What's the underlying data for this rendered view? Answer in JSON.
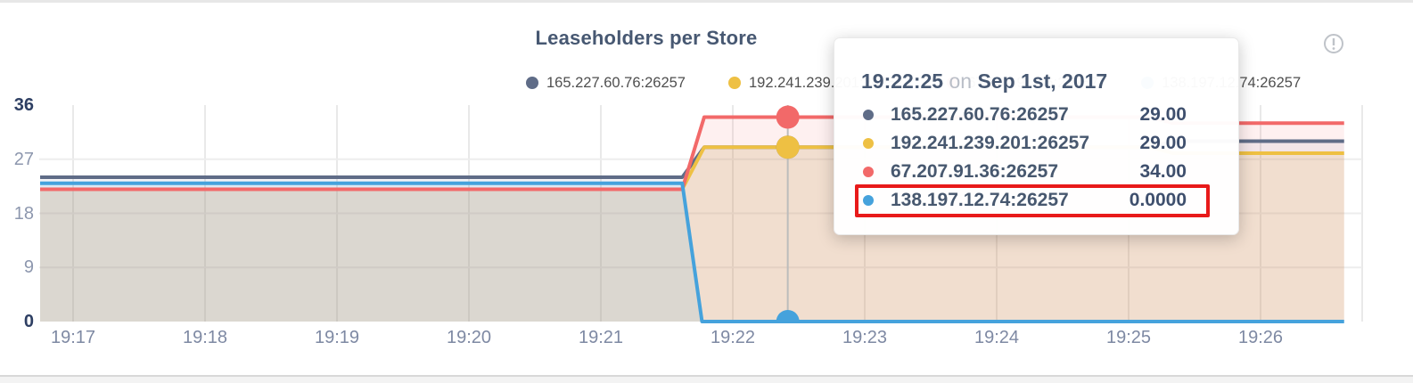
{
  "page": {
    "title": "Leaseholders per Store"
  },
  "header": {
    "info_icon": "info-circle-icon"
  },
  "legend": {
    "items": [
      {
        "label": "165.227.60.76:26257",
        "color": "#5f6c87"
      },
      {
        "label": "192.241.239.201:26257",
        "color": "#eec043"
      },
      {
        "label": "67.207.91.36:26257",
        "color": "#f26969"
      },
      {
        "label": "138.197.12.74:26257",
        "color": "#45a2dc"
      }
    ]
  },
  "tooltip": {
    "time": "19:22:25",
    "conjunction": "on",
    "date": "Sep 1st, 2017",
    "rows": [
      {
        "label": "165.227.60.76:26257",
        "value": "29.00",
        "color": "#5f6c87",
        "highlighted": false
      },
      {
        "label": "192.241.239.201:26257",
        "value": "29.00",
        "color": "#eec043",
        "highlighted": false
      },
      {
        "label": "67.207.91.36:26257",
        "value": "34.00",
        "color": "#f26969",
        "highlighted": false
      },
      {
        "label": "138.197.12.74:26257",
        "value": "0.0000",
        "color": "#45a2dc",
        "highlighted": true
      }
    ],
    "highlight_color": "#e81a1a"
  },
  "chart_data": {
    "type": "area",
    "title": "Leaseholders per Store",
    "xlabel": "",
    "ylabel": "",
    "ylim": [
      0,
      36
    ],
    "y_ticks": [
      0,
      9,
      18,
      27,
      36
    ],
    "x_tick_labels": [
      "19:17",
      "19:18",
      "19:19",
      "19:20",
      "19:21",
      "19:22",
      "19:23",
      "19:24",
      "19:25",
      "19:26"
    ],
    "x_tick_seconds": [
      0,
      60,
      120,
      180,
      240,
      300,
      360,
      420,
      480,
      540
    ],
    "x_domain_seconds": [
      -15,
      578
    ],
    "grid": true,
    "legend_position": "top",
    "series": [
      {
        "name": "165.227.60.76:26257",
        "color": "#5f6c87",
        "points": [
          [
            -15,
            24
          ],
          [
            277,
            24
          ],
          [
            287,
            29
          ],
          [
            490,
            29
          ],
          [
            500,
            30
          ],
          [
            578,
            30
          ]
        ]
      },
      {
        "name": "192.241.239.201:26257",
        "color": "#eec043",
        "points": [
          [
            -15,
            22
          ],
          [
            277,
            22
          ],
          [
            287,
            29
          ],
          [
            490,
            29
          ],
          [
            500,
            28
          ],
          [
            578,
            28
          ]
        ]
      },
      {
        "name": "67.207.91.36:26257",
        "color": "#f26969",
        "points": [
          [
            -15,
            22
          ],
          [
            277,
            22
          ],
          [
            287,
            34
          ],
          [
            490,
            34
          ],
          [
            500,
            33
          ],
          [
            578,
            33
          ]
        ]
      },
      {
        "name": "138.197.12.74:26257",
        "color": "#45a2dc",
        "points": [
          [
            -15,
            23
          ],
          [
            277,
            23
          ],
          [
            286,
            0
          ],
          [
            578,
            0
          ]
        ]
      }
    ],
    "hover": {
      "time_seconds": 325,
      "time_label": "19:22:25",
      "date_label": "Sep 1st, 2017",
      "values": [
        29,
        29,
        34,
        0
      ]
    }
  }
}
